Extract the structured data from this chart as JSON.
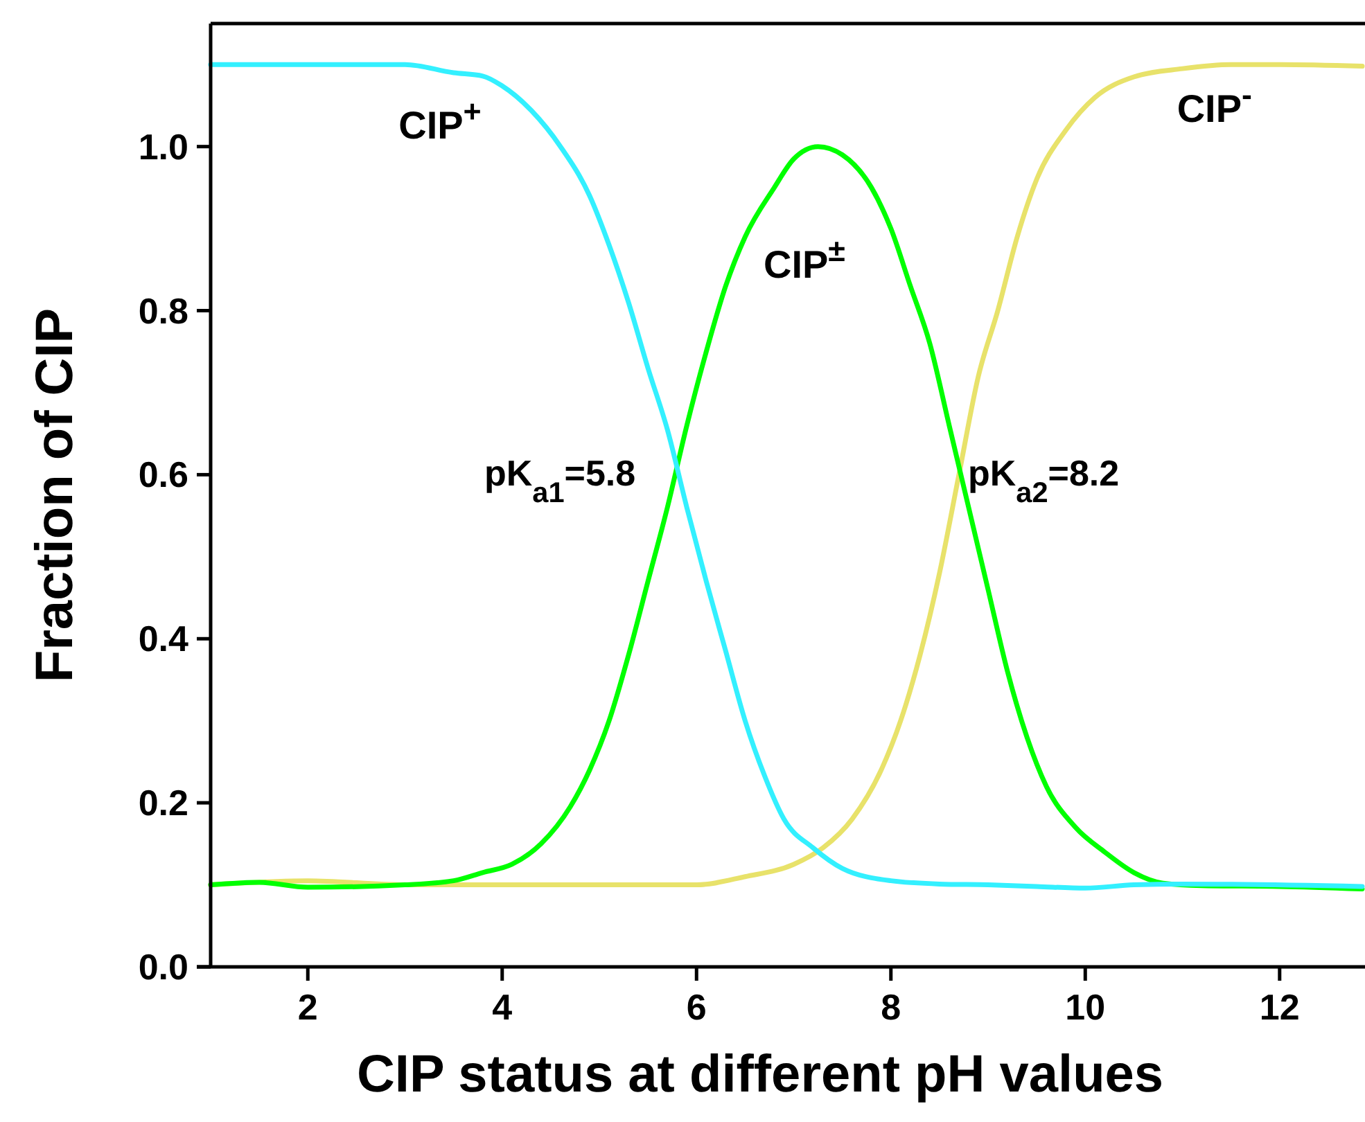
{
  "chart_data": {
    "type": "line",
    "xlabel": "CIP status at different pH values",
    "ylabel": "Fraction of CIP",
    "xlim": [
      1,
      12.85
    ],
    "ylim": [
      0,
      1.15
    ],
    "xticks": [
      2,
      4,
      6,
      8,
      10,
      12
    ],
    "yticks": [
      {
        "value": 0,
        "label": "0.0"
      },
      {
        "value": 0.2,
        "label": "0.2"
      },
      {
        "value": 0.4,
        "label": "0.4"
      },
      {
        "value": 0.6,
        "label": "0.6"
      },
      {
        "value": 0.8,
        "label": "0.8"
      },
      {
        "value": 1,
        "label": "1.0"
      }
    ],
    "grid": false,
    "marker": "none",
    "line_style": "solid",
    "annotations": [
      {
        "text": "pK$_{a1}$=5.8",
        "x": 5.8,
        "y": 0.6
      },
      {
        "text": "pK$_{a2}$=8.2",
        "x": 8.65,
        "y": 0.6
      }
    ],
    "series": [
      {
        "name": "CIP$^{+}$",
        "color": "#33f0ff",
        "x": [
          1,
          1.5,
          2,
          3,
          3.5,
          3.8,
          4,
          4.3,
          4.6,
          4.9,
          5.1,
          5.3,
          5.5,
          5.7,
          5.9,
          6.1,
          6.3,
          6.5,
          6.7,
          6.9,
          7.2,
          7.5,
          8,
          8.5,
          9,
          9.5,
          10,
          10.5,
          11,
          12.85
        ],
        "values": [
          1.1,
          1.1,
          1.1,
          1.1,
          1.09,
          1.086,
          1.074,
          1.044,
          1.0,
          0.94,
          0.88,
          0.81,
          0.73,
          0.655,
          0.56,
          0.47,
          0.385,
          0.3,
          0.233,
          0.18,
          0.145,
          0.12,
          0.105,
          0.101,
          0.1,
          0.098,
          0.096,
          0.1,
          0.101,
          0.098
        ]
      },
      {
        "name": "CIP$^{±}$",
        "color": "#00ff00",
        "x": [
          1,
          1.5,
          2,
          3,
          3.5,
          3.8,
          4.1,
          4.4,
          4.7,
          4.9,
          5.1,
          5.3,
          5.5,
          5.7,
          5.9,
          6.1,
          6.3,
          6.5,
          6.8,
          7,
          7.25,
          7.5,
          7.8,
          8,
          8.2,
          8.4,
          8.6,
          8.8,
          9,
          9.2,
          9.4,
          9.6,
          9.9,
          10.2,
          10.5,
          10.8,
          11.2,
          12,
          12.85
        ],
        "values": [
          0.1,
          0.103,
          0.097,
          0.1,
          0.105,
          0.115,
          0.125,
          0.15,
          0.195,
          0.24,
          0.3,
          0.38,
          0.47,
          0.56,
          0.66,
          0.75,
          0.83,
          0.89,
          0.95,
          0.985,
          1.0,
          0.99,
          0.95,
          0.9,
          0.83,
          0.76,
          0.66,
          0.56,
          0.46,
          0.36,
          0.28,
          0.22,
          0.17,
          0.14,
          0.115,
          0.102,
          0.099,
          0.098,
          0.095
        ]
      },
      {
        "name": "CIP$^{-}$",
        "color": "#e8e26a",
        "x": [
          1,
          2,
          3,
          4,
          5,
          6,
          6.5,
          7,
          7.3,
          7.6,
          7.9,
          8.1,
          8.3,
          8.5,
          8.7,
          8.9,
          9.1,
          9.3,
          9.5,
          9.8,
          10.1,
          10.5,
          11,
          11.5,
          12,
          12.85
        ],
        "values": [
          0.1,
          0.105,
          0.1,
          0.1,
          0.1,
          0.1,
          0.11,
          0.125,
          0.145,
          0.18,
          0.24,
          0.3,
          0.38,
          0.48,
          0.6,
          0.72,
          0.8,
          0.89,
          0.96,
          1.02,
          1.06,
          1.085,
          1.095,
          1.1,
          1.1,
          1.098
        ]
      }
    ]
  }
}
